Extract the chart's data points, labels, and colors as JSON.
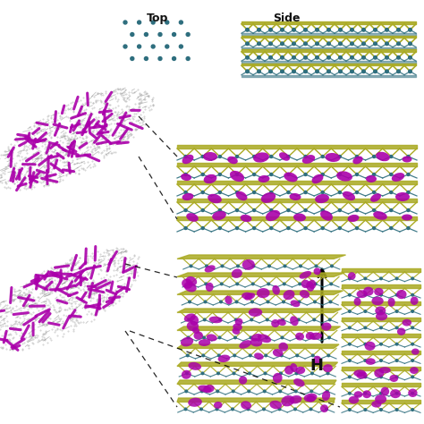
{
  "bg_color": "#ffffff",
  "magenta": "#AA00AA",
  "teal": "#2E6E7E",
  "yellow_green": "#AAAA22",
  "gray_dot": "#999999",
  "gray_rod": "#777777",
  "dark": "#111111",
  "top_label": "Top",
  "side_label": "Side",
  "H_label": "H",
  "figsize": [
    4.74,
    4.74
  ],
  "dpi": 100
}
